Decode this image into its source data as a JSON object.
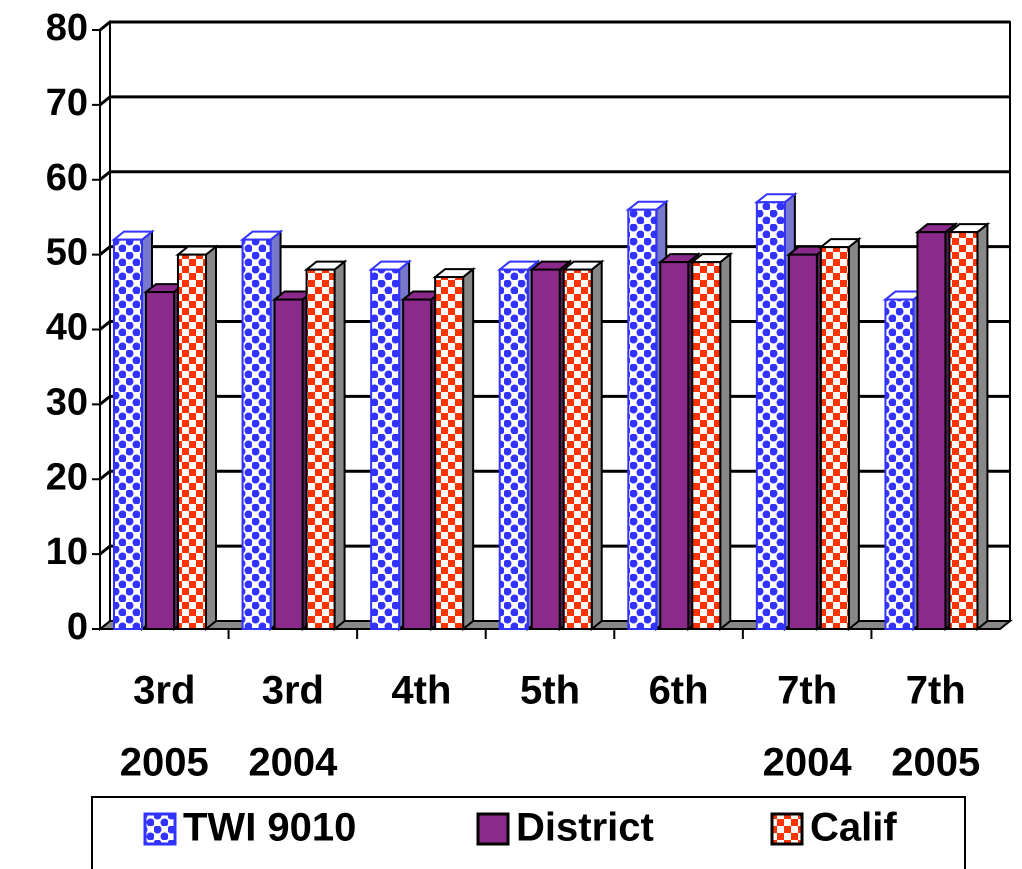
{
  "chart_data": {
    "type": "bar",
    "categories": [
      [
        "3rd",
        "2005"
      ],
      [
        "3rd",
        "2004"
      ],
      [
        "4th"
      ],
      [
        "5th"
      ],
      [
        "6th"
      ],
      [
        "7th",
        "2004"
      ],
      [
        "7th",
        "2005"
      ]
    ],
    "series": [
      {
        "name": "TWI 9010",
        "color": "#3333ff",
        "values": [
          52,
          52,
          48,
          48,
          56,
          57,
          44
        ]
      },
      {
        "name": "District",
        "color": "#8b2a8b",
        "values": [
          45,
          44,
          44,
          48,
          49,
          50,
          53
        ]
      },
      {
        "name": "Calif",
        "color": "#ff3300",
        "values": [
          50,
          48,
          47,
          48,
          49,
          51,
          53
        ]
      }
    ],
    "ylim": [
      0,
      80
    ],
    "yticks": [
      0,
      10,
      20,
      30,
      40,
      50,
      60,
      70,
      80
    ],
    "grid": true
  }
}
